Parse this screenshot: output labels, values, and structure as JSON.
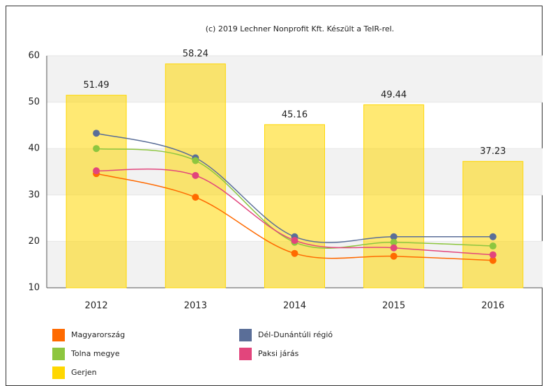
{
  "chart_data": {
    "type": "combo",
    "title": "(c) 2019 Lechner Nonprofit Kft. Készült a TeIR-rel.",
    "categories": [
      "2012",
      "2013",
      "2014",
      "2015",
      "2016"
    ],
    "ylim": [
      10,
      60
    ],
    "yticks": [
      10,
      20,
      30,
      40,
      50,
      60
    ],
    "grid": true,
    "series": [
      {
        "name": "Magyarország",
        "type": "line",
        "color": "#ff6a00",
        "values": [
          34.6,
          29.5,
          17.4,
          16.8,
          15.9
        ]
      },
      {
        "name": "Dél-Dunántúli régió",
        "type": "line",
        "color": "#5a6e98",
        "values": [
          43.3,
          38.0,
          21.0,
          21.0,
          21.0
        ]
      },
      {
        "name": "Tolna megye",
        "type": "line",
        "color": "#8dc63f",
        "values": [
          40.0,
          37.4,
          19.8,
          19.8,
          19.0
        ]
      },
      {
        "name": "Paksi járás",
        "type": "line",
        "color": "#e2457c",
        "values": [
          35.2,
          34.2,
          20.2,
          18.6,
          17.1
        ]
      },
      {
        "name": "Gerjen",
        "type": "bar",
        "color": "#ffd700",
        "values": [
          51.49,
          58.24,
          45.16,
          49.44,
          37.23
        ]
      }
    ]
  }
}
